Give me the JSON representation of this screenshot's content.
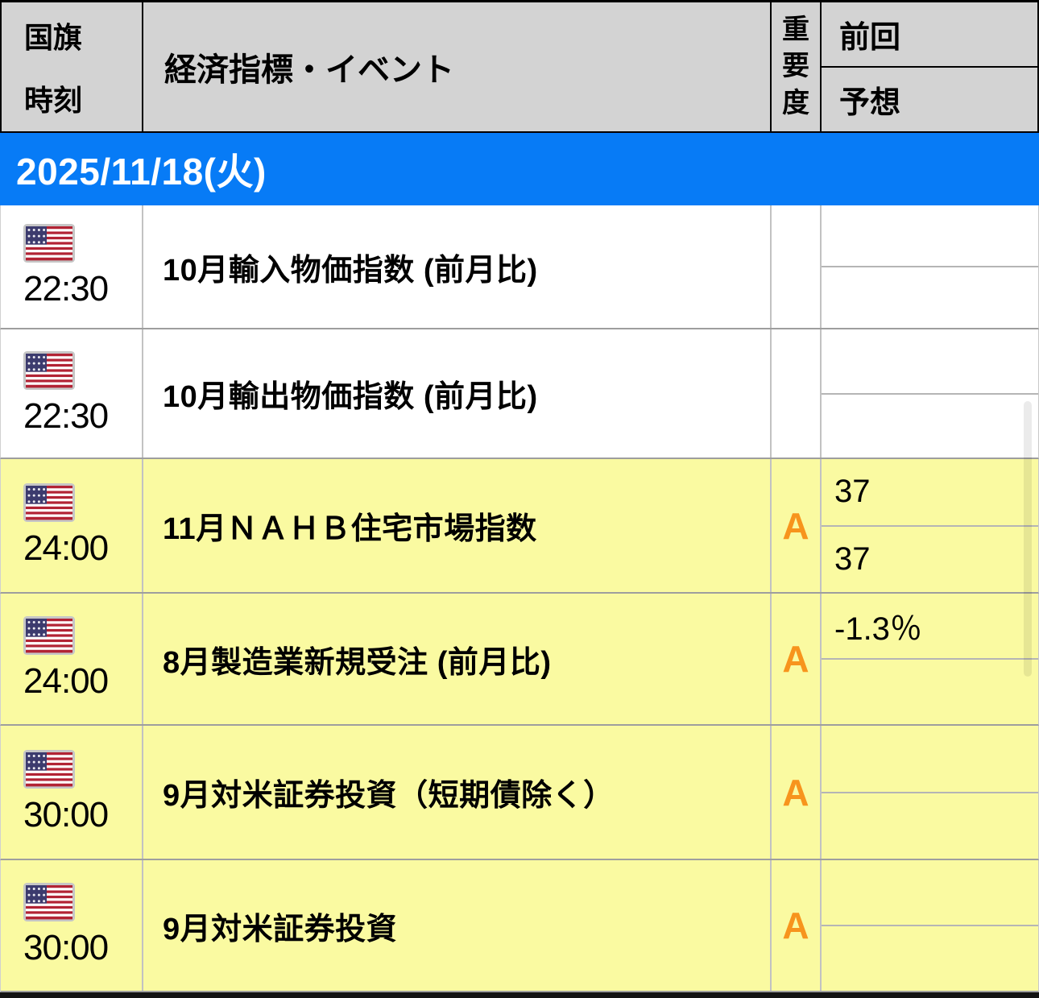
{
  "header": {
    "flag_label": "国旗",
    "time_label": "時刻",
    "event_label": "経済指標・イベント",
    "importance_label": "重要度",
    "previous_label": "前回",
    "forecast_label": "予想"
  },
  "date_header": "2025/11/18(火)",
  "rows": [
    {
      "flag": "us-flag",
      "time": "22:30",
      "event": "10月輸入物価指数 (前月比)",
      "importance": "",
      "previous": "",
      "forecast": "",
      "highlighted": false
    },
    {
      "flag": "us-flag",
      "time": "22:30",
      "event": "10月輸出物価指数 (前月比)",
      "importance": "",
      "previous": "",
      "forecast": "",
      "highlighted": false
    },
    {
      "flag": "us-flag",
      "time": "24:00",
      "event": "11月ＮＡＨＢ住宅市場指数",
      "importance": "A",
      "previous": "37",
      "forecast": "37",
      "highlighted": true
    },
    {
      "flag": "us-flag",
      "time": "24:00",
      "event": "8月製造業新規受注 (前月比)",
      "importance": "A",
      "previous": "-1.3％",
      "forecast": "",
      "highlighted": true
    },
    {
      "flag": "us-flag",
      "time": "30:00",
      "event": "9月対米証券投資（短期債除く）",
      "importance": "A",
      "previous": "",
      "forecast": "",
      "highlighted": true
    },
    {
      "flag": "us-flag",
      "time": "30:00",
      "event": "9月対米証券投資",
      "importance": "A",
      "previous": "",
      "forecast": "",
      "highlighted": true
    }
  ],
  "colors": {
    "header_gray": "#d3d3d3",
    "date_row_blue": "#077bf6",
    "highlight_yellow": "#fafaa1",
    "importance_orange": "#f7941d",
    "flag_red": "#b22334",
    "flag_navy": "#3c3b6e"
  }
}
